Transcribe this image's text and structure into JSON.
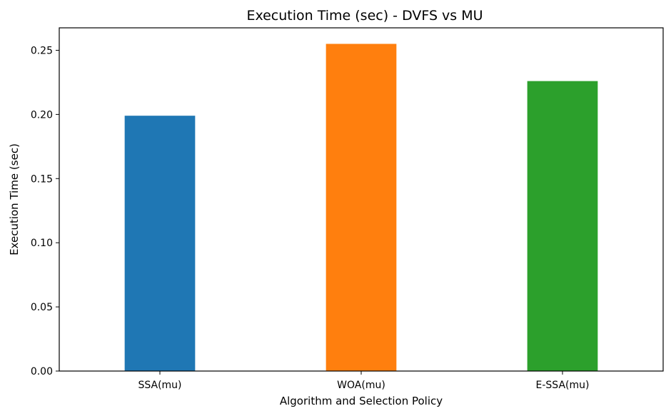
{
  "chart_data": {
    "type": "bar",
    "title": "Execution Time (sec) - DVFS vs MU",
    "xlabel": "Algorithm and Selection Policy",
    "ylabel": "Execution Time (sec)",
    "categories": [
      "SSA(mu)",
      "WOA(mu)",
      "E-SSA(mu)"
    ],
    "values": [
      0.199,
      0.255,
      0.226
    ],
    "colors": [
      "#1f77b4",
      "#ff7f0e",
      "#2ca02c"
    ],
    "ylim": [
      0,
      0.2675
    ],
    "yticks": [
      0.0,
      0.05,
      0.1,
      0.15,
      0.2,
      0.25
    ],
    "ytick_labels": [
      "0.00",
      "0.05",
      "0.10",
      "0.15",
      "0.20",
      "0.25"
    ],
    "grid": false,
    "legend": "none"
  }
}
